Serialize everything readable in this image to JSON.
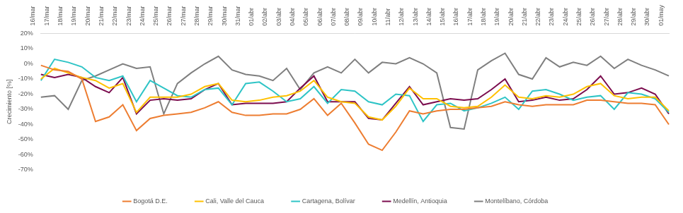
{
  "chart_data": {
    "type": "line",
    "y_label": "Crecimiento [%]",
    "categories": [
      "16/mar",
      "17/mar",
      "18/mar",
      "19/mar",
      "20/mar",
      "21/mar",
      "22/mar",
      "23/mar",
      "24/mar",
      "25/mar",
      "26/mar",
      "27/mar",
      "28/mar",
      "29/mar",
      "30/mar",
      "31/mar",
      "01/abr",
      "02/abr",
      "03/abr",
      "04/abr",
      "05/abr",
      "06/abr",
      "07/abr",
      "08/abr",
      "09/abr",
      "10/abr",
      "11/abr",
      "12/abr",
      "13/abr",
      "14/abr",
      "15/abr",
      "16/abr",
      "17/abr",
      "18/abr",
      "19/abr",
      "20/abr",
      "21/abr",
      "22/abr",
      "23/abr",
      "24/abr",
      "25/abr",
      "26/abr",
      "27/abr",
      "28/abr",
      "29/abr",
      "30/abr",
      "01/may"
    ],
    "series": [
      {
        "name": "Bogotá D.E.",
        "color": "#ED7D31",
        "values": [
          -1,
          -4,
          -5,
          -10,
          -38,
          -35,
          -27,
          -44,
          -36,
          -34,
          -33,
          -32,
          -29,
          -25,
          -32,
          -34,
          -34,
          -33,
          -33,
          -30,
          -23,
          -34,
          -26,
          -39,
          -53,
          -57,
          -45,
          -31,
          -33,
          -31,
          -30,
          -30,
          -29,
          -28,
          -25,
          -27,
          -28,
          -27,
          -27,
          -27,
          -24,
          -24,
          -25,
          -26,
          -26,
          -27,
          -40
        ]
      },
      {
        "name": "Cali, Valle del Cauca",
        "color": "#FFC000",
        "values": [
          -10,
          -3,
          -6,
          -9,
          -11,
          -16,
          -13,
          -32,
          -22,
          -22,
          -22,
          -20,
          -15,
          -13,
          -24,
          -25,
          -24,
          -22,
          -21,
          -18,
          -11,
          -22,
          -25,
          -26,
          -35,
          -37,
          -28,
          -16,
          -23,
          -23,
          -28,
          -29,
          -28,
          -22,
          -14,
          -22,
          -23,
          -21,
          -22,
          -20,
          -15,
          -13,
          -21,
          -23,
          -22,
          -22,
          -31
        ]
      },
      {
        "name": "Cartagena, Bolívar",
        "color": "#2EC4C6",
        "values": [
          -11,
          3,
          1,
          -2,
          -9,
          -11,
          -8,
          -25,
          -11,
          -16,
          -21,
          -22,
          -17,
          -16,
          -27,
          -13,
          -12,
          -18,
          -25,
          -23,
          -15,
          -26,
          -17,
          -18,
          -25,
          -27,
          -20,
          -21,
          -38,
          -27,
          -26,
          -31,
          -29,
          -26,
          -22,
          -30,
          -18,
          -17,
          -20,
          -24,
          -22,
          -21,
          -30,
          -19,
          -20,
          -23,
          -32
        ]
      },
      {
        "name": "Medellín, Antioquia",
        "color": "#7B0C4E",
        "values": [
          -7,
          -9,
          -7,
          -9,
          -15,
          -19,
          -9,
          -33,
          -24,
          -23,
          -24,
          -23,
          -17,
          -13,
          -27,
          -26,
          -26,
          -26,
          -25,
          -16,
          -8,
          -25,
          -25,
          -25,
          -36,
          -37,
          -26,
          -15,
          -27,
          -25,
          -23,
          -24,
          -23,
          -17,
          -10,
          -25,
          -24,
          -22,
          -24,
          -23,
          -17,
          -8,
          -20,
          -19,
          -16,
          -20,
          -33
        ]
      },
      {
        "name": "Montelíbano, Córdoba",
        "color": "#7F7F7F",
        "values": [
          -22,
          -21,
          -30,
          -11,
          -8,
          -4,
          0,
          -3,
          -2,
          -33,
          -13,
          -6,
          0,
          5,
          -4,
          -7,
          -8,
          -11,
          -3,
          -17,
          -6,
          -2,
          -6,
          3,
          -6,
          1,
          0,
          4,
          0,
          -6,
          -42,
          -43,
          -4,
          2,
          7,
          -7,
          -10,
          4,
          -2,
          1,
          -1,
          5,
          -3,
          3,
          -1,
          -4,
          -8
        ]
      }
    ],
    "ylim": [
      -70,
      20
    ],
    "yticks": [
      {
        "value": -70,
        "label": "-70%"
      },
      {
        "value": -60,
        "label": "-60%"
      },
      {
        "value": -50,
        "label": "-50%"
      },
      {
        "value": -40,
        "label": "-40%"
      },
      {
        "value": -30,
        "label": "-30%"
      },
      {
        "value": -20,
        "label": "-20%"
      },
      {
        "value": -10,
        "label": "-10%"
      },
      {
        "value": 0,
        "label": "0%"
      },
      {
        "value": 10,
        "label": "10%"
      },
      {
        "value": 20,
        "label": "20%"
      }
    ],
    "grid": false,
    "legend": "bottom"
  }
}
